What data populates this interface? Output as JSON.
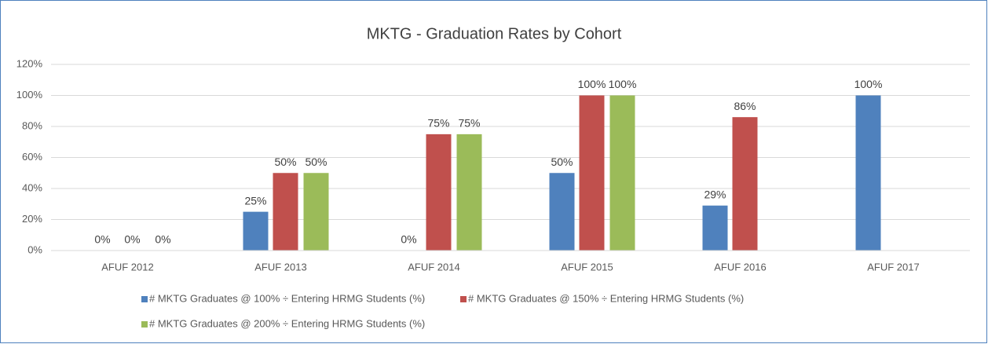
{
  "chart_data": {
    "type": "bar",
    "title": "MKTG - Graduation Rates by Cohort",
    "categories": [
      "AFUF 2012",
      "AFUF 2013",
      "AFUF 2014",
      "AFUF 2015",
      "AFUF 2016",
      "AFUF 2017"
    ],
    "series": [
      {
        "name": "# MKTG Graduates @ 100% ÷ Entering HRMG Students (%)",
        "color": "#4f81bd",
        "values": [
          0,
          25,
          0,
          50,
          29,
          100
        ],
        "value_labels": [
          "0%",
          "25%",
          "0%",
          "50%",
          "29%",
          "100%"
        ]
      },
      {
        "name": "# MKTG Graduates @ 150% ÷ Entering HRMG Students (%)",
        "color": "#c0504d",
        "values": [
          0,
          50,
          75,
          100,
          86,
          null
        ],
        "value_labels": [
          "0%",
          "50%",
          "75%",
          "100%",
          "86%",
          null
        ]
      },
      {
        "name": "# MKTG Graduates @ 200% ÷ Entering HRMG Students (%)",
        "color": "#9bbb59",
        "values": [
          0,
          50,
          75,
          100,
          null,
          null
        ],
        "value_labels": [
          "0%",
          "50%",
          "75%",
          "100%",
          null,
          null
        ]
      }
    ],
    "ylim": [
      0,
      120
    ],
    "yticks": [
      {
        "value": 0,
        "label": "0%"
      },
      {
        "value": 20,
        "label": "20%"
      },
      {
        "value": 40,
        "label": "40%"
      },
      {
        "value": 60,
        "label": "60%"
      },
      {
        "value": 80,
        "label": "80%"
      },
      {
        "value": 100,
        "label": "100%"
      },
      {
        "value": 120,
        "label": "120%"
      }
    ],
    "grid": true,
    "legend": "bottom"
  }
}
